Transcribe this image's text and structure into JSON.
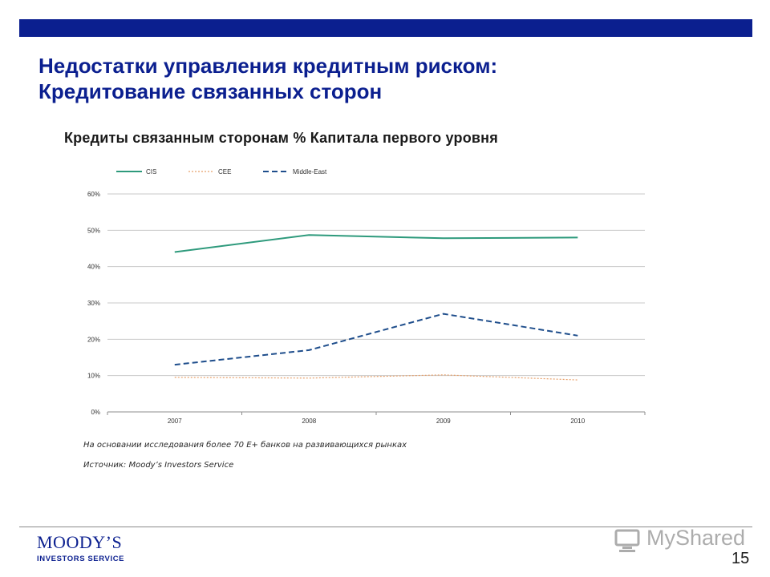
{
  "slide": {
    "title_line1": "Недостатки управления кредитным риском:",
    "title_line2": "Кредитование связанных сторон",
    "note_1": "На основании исследования более 70 Е+ банков на развивающихся рынках",
    "note_2": "Источник: Moody’s Investors Service",
    "page_number": "15",
    "accent_color": "#0b1f8f"
  },
  "logo": {
    "name": "MOODY’S",
    "subtitle": "INVESTORS SERVICE"
  },
  "watermark": {
    "text": "MyShared",
    "icon": "monitor-icon"
  },
  "chart_data": {
    "type": "line",
    "title": "Кредиты связанным сторонам % Капитала первого уровня",
    "categories": [
      "2007",
      "2008",
      "2009",
      "2010"
    ],
    "series": [
      {
        "name": "CIS",
        "values": [
          44,
          48.7,
          47.8,
          48
        ],
        "color": "#2e9a7c",
        "style": "solid"
      },
      {
        "name": "CEE",
        "values": [
          9.5,
          9.3,
          10.2,
          8.8
        ],
        "color": "#e8a06a",
        "style": "dotted"
      },
      {
        "name": "Middle-East",
        "values": [
          13,
          17,
          27,
          21
        ],
        "color": "#1f4e8c",
        "style": "dashed"
      }
    ],
    "yticks": [
      "0%",
      "10%",
      "20%",
      "30%",
      "40%",
      "50%",
      "60%"
    ],
    "ylim": [
      0,
      60
    ],
    "grid": true,
    "legend_position": "top-left"
  }
}
